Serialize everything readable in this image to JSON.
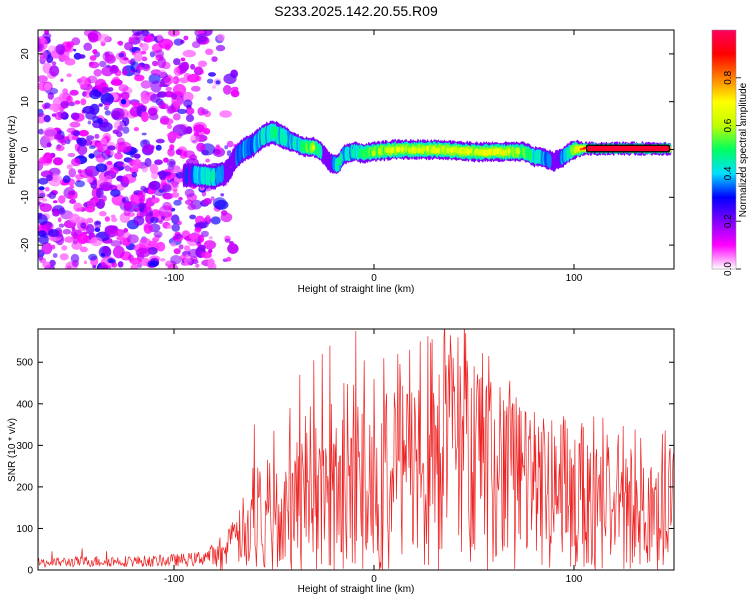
{
  "title": "S233.2025.142.20.55.R09",
  "chart_data": [
    {
      "type": "heatmap",
      "title": "S233.2025.142.20.55.R09",
      "xlabel": "Height of straight line (km)",
      "ylabel": "Frequency (Hz)",
      "xlim": [
        -168,
        150
      ],
      "ylim": [
        -25,
        25
      ],
      "x_ticks": [
        "-100",
        "0",
        "100"
      ],
      "x_tick_values": [
        -100,
        0,
        100
      ],
      "y_ticks": [
        "-20",
        "-10",
        "0",
        "10",
        "20"
      ],
      "y_tick_values": [
        -20,
        -10,
        0,
        10,
        20
      ],
      "colorbar": {
        "label": "Normalized spectral amplitude",
        "range": [
          0,
          1
        ],
        "ticks": [
          "0.0",
          "0.2",
          "0.4",
          "0.6",
          "0.8"
        ],
        "tick_values": [
          0.0,
          0.2,
          0.4,
          0.6,
          0.8
        ],
        "colors": [
          "#ffffff",
          "#ff00ff",
          "#8000ff",
          "#0000ff",
          "#00e0ff",
          "#00ff60",
          "#c0ff00",
          "#ffff00",
          "#ff8000",
          "#ff0000",
          "#ff0060"
        ]
      },
      "noise_region_x": [
        -168,
        -83
      ],
      "ridge": {
        "x": [
          -95,
          -90,
          -85,
          -80,
          -75,
          -72,
          -70,
          -65,
          -60,
          -55,
          -50,
          -45,
          -40,
          -35,
          -30,
          -25,
          -22,
          -18,
          -15,
          -10,
          -5,
          0,
          10,
          20,
          30,
          40,
          50,
          60,
          70,
          75,
          80,
          85,
          90,
          95,
          98,
          100,
          105,
          110,
          120,
          130,
          140,
          148
        ],
        "y": [
          -5.5,
          -5.3,
          -5.5,
          -5.8,
          -5,
          -4,
          -2,
          0,
          1,
          3,
          3.5,
          2.5,
          1.5,
          0.5,
          0.5,
          -1,
          -2.8,
          -3.2,
          -1,
          -0.5,
          -0.8,
          -0.5,
          0,
          0,
          0,
          -0.2,
          -0.5,
          -0.5,
          -0.5,
          -0.5,
          -1.5,
          -1.8,
          -2.5,
          -1.5,
          -0.5,
          0,
          0.2,
          0.2,
          0.2,
          0.2,
          0.2,
          0.2
        ],
        "amplitude": [
          0.3,
          0.35,
          0.4,
          0.4,
          0.3,
          0.25,
          0.3,
          0.35,
          0.35,
          0.4,
          0.45,
          0.4,
          0.4,
          0.45,
          0.6,
          0.3,
          0.25,
          0.45,
          0.4,
          0.4,
          0.45,
          0.55,
          0.6,
          0.6,
          0.6,
          0.6,
          0.6,
          0.65,
          0.6,
          0.55,
          0.45,
          0.4,
          0.3,
          0.35,
          0.45,
          0.6,
          0.85,
          0.9,
          0.95,
          0.95,
          0.95,
          0.9
        ],
        "width_hz": [
          2.5,
          2.5,
          2.5,
          2.5,
          2.5,
          2.5,
          2.5,
          2.5,
          2.5,
          2.5,
          2.5,
          2.5,
          2,
          2,
          2,
          2,
          2,
          2,
          2,
          2,
          2,
          2,
          2,
          2,
          2,
          2,
          2,
          2,
          2,
          2,
          2,
          2,
          2,
          2,
          2,
          2,
          1.3,
          1.3,
          1.3,
          1.3,
          1.3,
          1.3
        ]
      }
    },
    {
      "type": "line",
      "xlabel": "Height of straight line (km)",
      "ylabel": "SNR (10 * v/v)",
      "xlim": [
        -168,
        150
      ],
      "ylim": [
        0,
        580
      ],
      "x_ticks": [
        "-100",
        "0",
        "100"
      ],
      "x_tick_values": [
        -100,
        0,
        100
      ],
      "y_ticks": [
        "0",
        "100",
        "200",
        "300",
        "400",
        "500"
      ],
      "y_tick_values": [
        0,
        100,
        200,
        300,
        400,
        500
      ],
      "color": "#ee2222",
      "envelope": {
        "x": [
          -168,
          -140,
          -110,
          -90,
          -80,
          -75,
          -70,
          -65,
          -60,
          -55,
          -50,
          -45,
          -40,
          -35,
          -30,
          -25,
          -20,
          -15,
          -10,
          -5,
          0,
          5,
          10,
          15,
          20,
          25,
          30,
          35,
          40,
          45,
          50,
          55,
          60,
          65,
          70,
          80,
          90,
          100,
          110,
          120,
          130,
          140,
          150
        ],
        "y": [
          20,
          25,
          25,
          30,
          45,
          70,
          110,
          160,
          190,
          200,
          210,
          240,
          260,
          290,
          300,
          300,
          310,
          330,
          340,
          340,
          340,
          360,
          380,
          400,
          420,
          440,
          470,
          480,
          490,
          490,
          450,
          420,
          400,
          370,
          350,
          330,
          320,
          300,
          280,
          270,
          260,
          255,
          250
        ],
        "spike_peaks_x": [
          -60,
          -50,
          -42,
          -37,
          -30,
          -26,
          -22,
          -15,
          -9,
          -5,
          0,
          5,
          12,
          18,
          23,
          29,
          35,
          38,
          42,
          46,
          50,
          56,
          63,
          70,
          80,
          95
        ],
        "spike_peaks_y": [
          350,
          335,
          390,
          470,
          505,
          520,
          540,
          450,
          575,
          505,
          460,
          510,
          520,
          530,
          550,
          555,
          560,
          565,
          560,
          570,
          490,
          430,
          440,
          400,
          380,
          370
        ]
      }
    }
  ]
}
